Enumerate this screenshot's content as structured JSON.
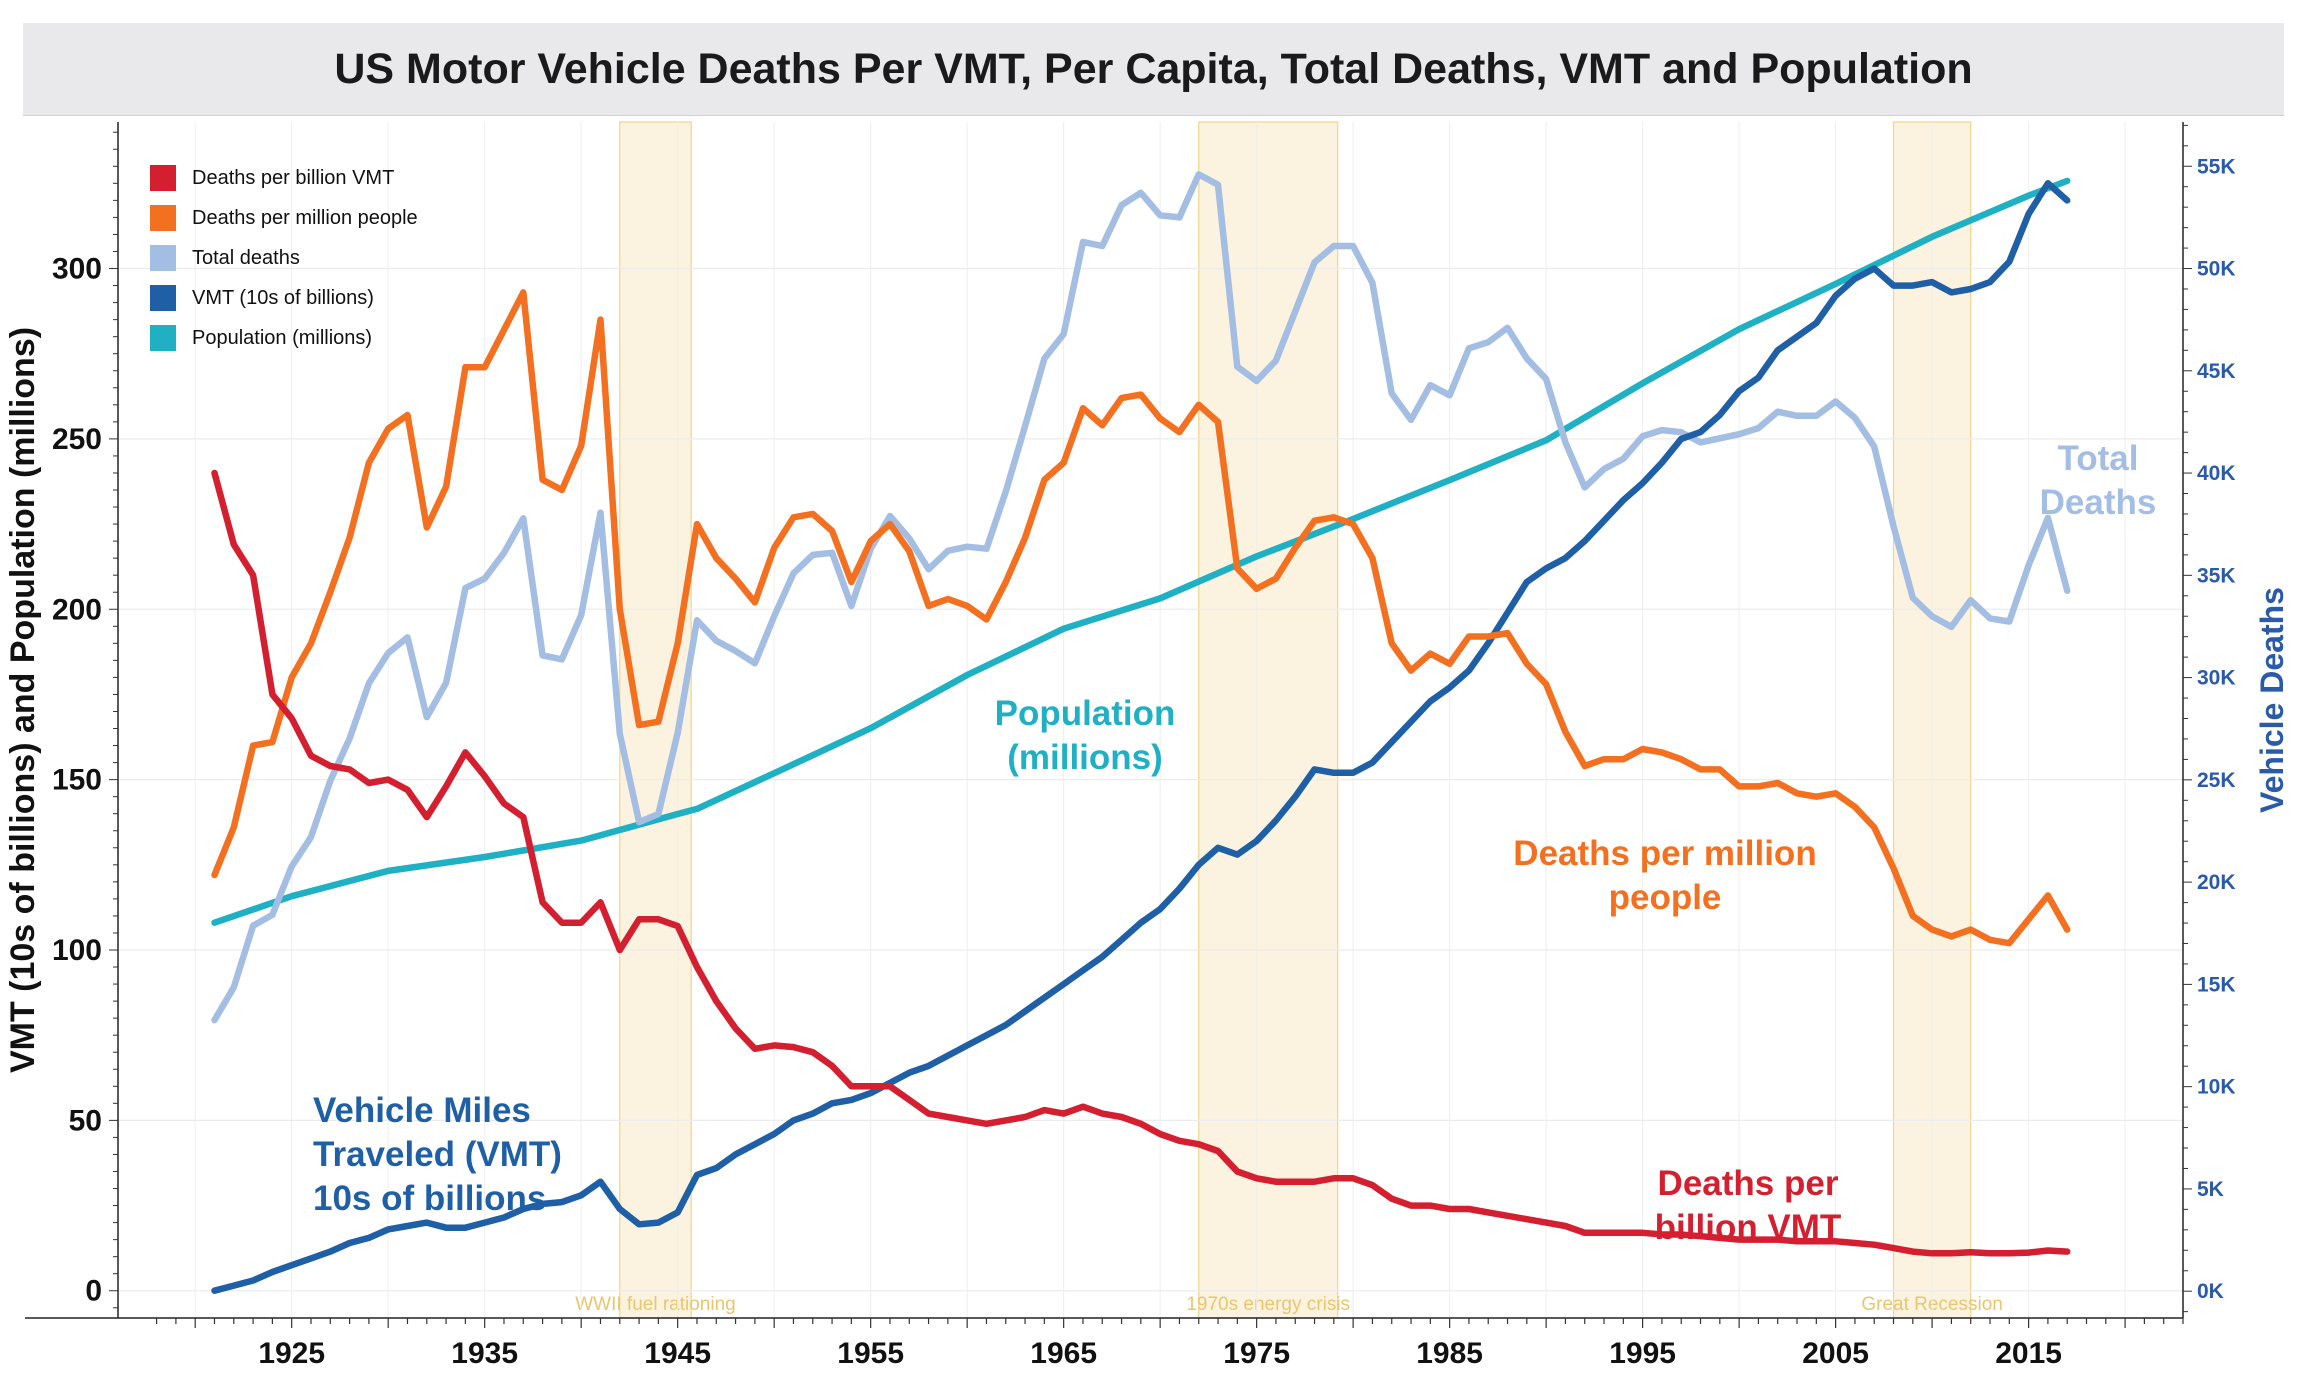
{
  "chart_data": {
    "type": "line",
    "title": "US Motor Vehicle Deaths Per VMT, Per Capita, Total Deaths, VMT and Population",
    "ylabel_left": "VMT (10s of billions) and Population (millions)",
    "ylabel_right": "Vehicle Deaths",
    "xlim": [
      1916,
      2023
    ],
    "ylim_left": [
      -8,
      343
    ],
    "ylim_right": [
      -1311,
      57164
    ],
    "x_ticks": [
      1925,
      1935,
      1945,
      1955,
      1965,
      1975,
      1985,
      1995,
      2005,
      2015
    ],
    "y_left_ticks": [
      0,
      50,
      100,
      150,
      200,
      250,
      300
    ],
    "y_right_ticks": [
      {
        "value": 0,
        "label": "0K"
      },
      {
        "value": 5000,
        "label": "5K"
      },
      {
        "value": 10000,
        "label": "10K"
      },
      {
        "value": 15000,
        "label": "15K"
      },
      {
        "value": 20000,
        "label": "20K"
      },
      {
        "value": 25000,
        "label": "25K"
      },
      {
        "value": 30000,
        "label": "30K"
      },
      {
        "value": 35000,
        "label": "35K"
      },
      {
        "value": 40000,
        "label": "40K"
      },
      {
        "value": 45000,
        "label": "45K"
      },
      {
        "value": 50000,
        "label": "50K"
      },
      {
        "value": 55000,
        "label": "55K"
      }
    ],
    "grid": true,
    "legend_position": "top-left",
    "shaded_periods": [
      {
        "start": 1942,
        "end": 1945.7,
        "label": "WWII fuel rationing"
      },
      {
        "start": 1972,
        "end": 1979.2,
        "label": "1970s energy crisis"
      },
      {
        "start": 2008,
        "end": 2012,
        "label": "Great Recession"
      }
    ],
    "series": [
      {
        "name": "Deaths per billion VMT",
        "color": "#d31f2f",
        "axis": "left",
        "label": [
          "Deaths per",
          "billion VMT"
        ],
        "x": [
          1921,
          1922,
          1923,
          1924,
          1925,
          1926,
          1927,
          1928,
          1929,
          1930,
          1931,
          1932,
          1933,
          1934,
          1935,
          1936,
          1937,
          1938,
          1939,
          1940,
          1941,
          1942,
          1943,
          1944,
          1945,
          1946,
          1947,
          1948,
          1949,
          1950,
          1951,
          1952,
          1953,
          1954,
          1955,
          1956,
          1957,
          1958,
          1959,
          1960,
          1961,
          1962,
          1963,
          1964,
          1965,
          1966,
          1967,
          1968,
          1969,
          1970,
          1971,
          1972,
          1973,
          1974,
          1975,
          1976,
          1977,
          1978,
          1979,
          1980,
          1981,
          1982,
          1983,
          1984,
          1985,
          1986,
          1987,
          1988,
          1989,
          1990,
          1991,
          1992,
          1993,
          1994,
          1995,
          1996,
          1997,
          1998,
          1999,
          2000,
          2001,
          2002,
          2003,
          2004,
          2005,
          2006,
          2007,
          2008,
          2009,
          2010,
          2011,
          2012,
          2013,
          2014,
          2015,
          2016,
          2017
        ],
        "values": [
          240,
          219,
          210,
          175,
          168,
          157,
          154,
          153,
          149,
          150,
          147,
          139,
          148,
          158,
          151,
          143,
          139,
          114,
          108,
          108,
          114,
          100,
          109,
          109,
          107,
          95,
          85,
          77,
          71,
          72,
          71.5,
          70,
          66,
          60,
          60,
          60,
          56,
          52,
          51,
          50,
          49,
          50,
          51,
          53,
          52,
          54,
          52,
          51,
          49,
          46,
          44,
          43,
          41,
          35,
          33,
          32,
          32,
          32,
          33,
          33,
          31,
          27,
          25,
          25,
          24,
          24,
          23,
          22,
          21,
          20,
          19,
          17,
          17,
          17,
          17,
          16.5,
          16.5,
          16,
          15.5,
          15,
          15,
          15,
          14.5,
          14.5,
          14.5,
          14,
          13.5,
          12.5,
          11.5,
          11,
          11,
          11.3,
          11,
          11,
          11.2,
          11.8,
          11.5
        ]
      },
      {
        "name": "Deaths per million people",
        "color": "#f37021",
        "axis": "left",
        "label": [
          "Deaths per million",
          "people"
        ],
        "x": [
          1921,
          1922,
          1923,
          1924,
          1925,
          1926,
          1927,
          1928,
          1929,
          1930,
          1931,
          1932,
          1933,
          1934,
          1935,
          1936,
          1937,
          1938,
          1939,
          1940,
          1941,
          1942,
          1943,
          1944,
          1945,
          1946,
          1947,
          1948,
          1949,
          1950,
          1951,
          1952,
          1953,
          1954,
          1955,
          1956,
          1957,
          1958,
          1959,
          1960,
          1961,
          1962,
          1963,
          1964,
          1965,
          1966,
          1967,
          1968,
          1969,
          1970,
          1971,
          1972,
          1973,
          1974,
          1975,
          1976,
          1977,
          1978,
          1979,
          1980,
          1981,
          1982,
          1983,
          1984,
          1985,
          1986,
          1987,
          1988,
          1989,
          1990,
          1991,
          1992,
          1993,
          1994,
          1995,
          1996,
          1997,
          1998,
          1999,
          2000,
          2001,
          2002,
          2003,
          2004,
          2005,
          2006,
          2007,
          2008,
          2009,
          2010,
          2011,
          2012,
          2013,
          2014,
          2015,
          2016,
          2017
        ],
        "values": [
          122,
          136,
          160,
          161,
          180,
          190,
          205,
          221,
          243,
          253,
          257,
          224,
          236,
          271,
          271,
          282,
          293,
          238,
          235,
          248,
          285,
          200,
          166,
          167,
          190,
          225,
          215,
          209,
          202,
          218,
          227,
          228,
          223,
          208,
          220,
          225,
          217,
          201,
          203,
          201,
          197,
          208,
          221,
          238,
          243,
          259,
          254,
          262,
          263,
          256,
          252,
          260,
          255,
          212,
          206,
          209,
          218,
          226,
          227,
          225,
          215,
          190,
          182,
          187,
          184,
          192,
          192,
          193,
          184,
          178,
          164,
          154,
          156,
          156,
          159,
          158,
          156,
          153,
          153,
          148,
          148,
          149,
          146,
          145,
          146,
          142,
          136,
          124,
          110,
          106,
          104,
          106,
          103,
          102,
          109,
          116,
          106
        ]
      },
      {
        "name": "Total deaths",
        "color": "#a3bde3",
        "axis": "right",
        "label": [
          "Total",
          "Deaths"
        ],
        "x": [
          1921,
          1922,
          1923,
          1924,
          1925,
          1926,
          1927,
          1928,
          1929,
          1930,
          1931,
          1932,
          1933,
          1934,
          1935,
          1936,
          1937,
          1938,
          1939,
          1940,
          1941,
          1942,
          1943,
          1944,
          1945,
          1946,
          1947,
          1948,
          1949,
          1950,
          1951,
          1952,
          1953,
          1954,
          1955,
          1956,
          1957,
          1958,
          1959,
          1960,
          1961,
          1962,
          1963,
          1964,
          1965,
          1966,
          1967,
          1968,
          1969,
          1970,
          1971,
          1972,
          1973,
          1974,
          1975,
          1976,
          1977,
          1978,
          1979,
          1980,
          1981,
          1982,
          1983,
          1984,
          1985,
          1986,
          1987,
          1988,
          1989,
          1990,
          1991,
          1992,
          1993,
          1994,
          1995,
          1996,
          1997,
          1998,
          1999,
          2000,
          2001,
          2002,
          2003,
          2004,
          2005,
          2006,
          2007,
          2008,
          2009,
          2010,
          2011,
          2012,
          2013,
          2014,
          2015,
          2016,
          2017
        ],
        "values": [
          13253,
          14859,
          17870,
          18400,
          20771,
          22200,
          24954,
          27022,
          29722,
          31204,
          31963,
          28070,
          29746,
          34374,
          34839,
          36102,
          37788,
          31083,
          30895,
          33060,
          38063,
          27250,
          22937,
          23332,
          27300,
          32800,
          31800,
          31300,
          30700,
          33000,
          35100,
          36000,
          36100,
          33500,
          36300,
          37900,
          36800,
          35300,
          36200,
          36400,
          36300,
          39100,
          42300,
          45600,
          46800,
          51300,
          51100,
          53100,
          53700,
          52600,
          52500,
          54600,
          54100,
          45200,
          44500,
          45500,
          47900,
          50300,
          51100,
          51100,
          49300,
          43900,
          42600,
          44300,
          43800,
          46100,
          46400,
          47100,
          45600,
          44600,
          41500,
          39300,
          40200,
          40700,
          41800,
          42100,
          42000,
          41500,
          41700,
          41900,
          42200,
          43000,
          42800,
          42800,
          43500,
          42700,
          41300,
          37400,
          33900,
          32999,
          32479,
          33782,
          32893,
          32744,
          35484,
          37806,
          34247
        ]
      },
      {
        "name": "VMT (10s of billions)",
        "color": "#1f5fa6",
        "axis": "left",
        "label": [
          "Vehicle Miles",
          "Traveled (VMT)",
          "10s of billions"
        ],
        "x": [
          1921,
          1922,
          1923,
          1924,
          1925,
          1926,
          1927,
          1928,
          1929,
          1930,
          1931,
          1932,
          1933,
          1934,
          1935,
          1936,
          1937,
          1938,
          1939,
          1940,
          1941,
          1942,
          1943,
          1944,
          1945,
          1946,
          1947,
          1948,
          1949,
          1950,
          1951,
          1952,
          1953,
          1954,
          1955,
          1956,
          1957,
          1958,
          1959,
          1960,
          1961,
          1962,
          1963,
          1964,
          1965,
          1966,
          1967,
          1968,
          1969,
          1970,
          1971,
          1972,
          1973,
          1974,
          1975,
          1976,
          1977,
          1978,
          1979,
          1980,
          1981,
          1982,
          1983,
          1984,
          1985,
          1986,
          1987,
          1988,
          1989,
          1990,
          1991,
          1992,
          1993,
          1994,
          1995,
          1996,
          1997,
          1998,
          1999,
          2000,
          2001,
          2002,
          2003,
          2004,
          2005,
          2006,
          2007,
          2008,
          2009,
          2010,
          2011,
          2012,
          2013,
          2014,
          2015,
          2016,
          2017
        ],
        "values": [
          0,
          1.5,
          3,
          5.5,
          7.5,
          9.5,
          11.5,
          14,
          15.5,
          18,
          19,
          20,
          18.5,
          18.5,
          20,
          21.5,
          24,
          25.5,
          26,
          28,
          32,
          24,
          19.5,
          20,
          23,
          34,
          36,
          40,
          43,
          46,
          50,
          52,
          55,
          56,
          58,
          61,
          64,
          66,
          69,
          72,
          75,
          78,
          82,
          86,
          90,
          94,
          98,
          103,
          108,
          112,
          118,
          125,
          130,
          128,
          132,
          138,
          145,
          153,
          152,
          152,
          155,
          161,
          167,
          173,
          177,
          182,
          190,
          199,
          208,
          212,
          215,
          220,
          226,
          232,
          237,
          243,
          250,
          252,
          257,
          264,
          268,
          276,
          280,
          284,
          292,
          297,
          300,
          295,
          295,
          296,
          293,
          294,
          296,
          302,
          316,
          325,
          320
        ]
      },
      {
        "name": "Population (millions)",
        "color": "#20b0c4",
        "axis": "left",
        "label": [
          "Population",
          "(millions)"
        ],
        "x": [
          1921,
          1925,
          1930,
          1935,
          1940,
          1945,
          1946,
          1950,
          1955,
          1960,
          1965,
          1970,
          1975,
          1980,
          1985,
          1990,
          1995,
          2000,
          2005,
          2010,
          2015,
          2017
        ],
        "values": [
          108,
          115.8,
          123.2,
          127.3,
          132.1,
          139.9,
          141.4,
          151.9,
          165.1,
          180.7,
          194.3,
          203.2,
          215.5,
          226.5,
          237.9,
          249.6,
          266.3,
          282.2,
          295.5,
          309.3,
          321.4,
          325.7
        ]
      }
    ]
  }
}
